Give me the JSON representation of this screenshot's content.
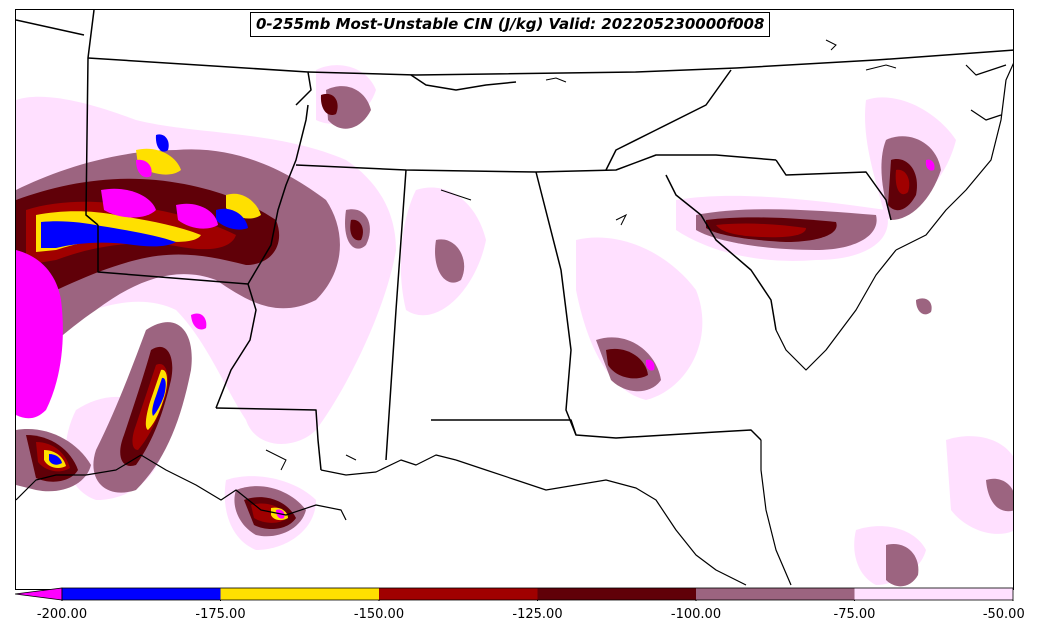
{
  "title": "0-255mb Most-Unstable CIN (J/kg) Valid: 202205230000f008",
  "colorbar": {
    "min": -200,
    "max": -50,
    "extend": "min",
    "bins": [
      {
        "from": -200,
        "to": -175,
        "color": "#0000ff"
      },
      {
        "from": -175,
        "to": -150,
        "color": "#ffe000"
      },
      {
        "from": -150,
        "to": -125,
        "color": "#a00000"
      },
      {
        "from": -125,
        "to": -100,
        "color": "#600008"
      },
      {
        "from": -100,
        "to": -75,
        "color": "#9c6480"
      },
      {
        "from": -75,
        "to": -50,
        "color": "#ffe0ff"
      }
    ],
    "under_color": "#ff00ff",
    "tick_values": [
      -200,
      -175,
      -150,
      -125,
      -100,
      -75,
      -50
    ],
    "tick_labels": [
      "-200.00",
      "-175.00",
      "-150.00",
      "-125.00",
      "-100.00",
      "-75.00",
      "-50.00"
    ]
  },
  "colors": {
    "pink_light": "#ffe0ff",
    "mauve": "#9c6480",
    "maroon": "#600008",
    "red": "#a00000",
    "yellow": "#ffe000",
    "blue": "#0000ff",
    "magenta": "#ff00ff",
    "border": "#000000"
  }
}
